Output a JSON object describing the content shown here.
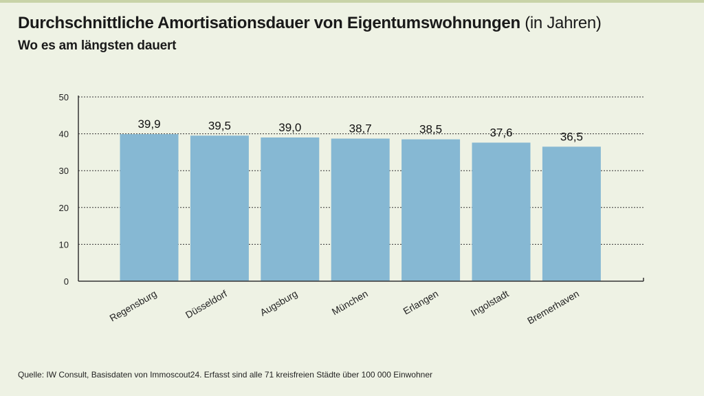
{
  "header": {
    "title_bold": "Durchschnittliche Amortisationsdauer von Eigentumswohnungen",
    "title_unit": "(in Jahren)",
    "subtitle": "Wo es am längsten dauert"
  },
  "footer": {
    "source": "Quelle: IW Consult, Basisdaten von Immoscout24. Erfasst sind alle 71 kreisfreien Städte über 100 000 Einwohner"
  },
  "colors": {
    "background": "#eef2e4",
    "bar": "#86b8d3",
    "axis": "#333333"
  },
  "chart_data": {
    "type": "bar",
    "title": "Durchschnittliche Amortisationsdauer von Eigentumswohnungen (in Jahren)",
    "subtitle": "Wo es am längsten dauert",
    "xlabel": "",
    "ylabel": "",
    "ylim": [
      0,
      50
    ],
    "yticks": [
      0,
      10,
      20,
      30,
      40,
      50
    ],
    "grid": true,
    "categories": [
      "Regensburg",
      "Düsseldorf",
      "Augsburg",
      "München",
      "Erlangen",
      "Ingolstadt",
      "Bremerhaven"
    ],
    "values": [
      39.9,
      39.5,
      39.0,
      38.7,
      38.5,
      37.6,
      36.5
    ],
    "value_labels": [
      "39,9",
      "39,5",
      "39,0",
      "38,7",
      "38,5",
      "37,6",
      "36,5"
    ]
  }
}
